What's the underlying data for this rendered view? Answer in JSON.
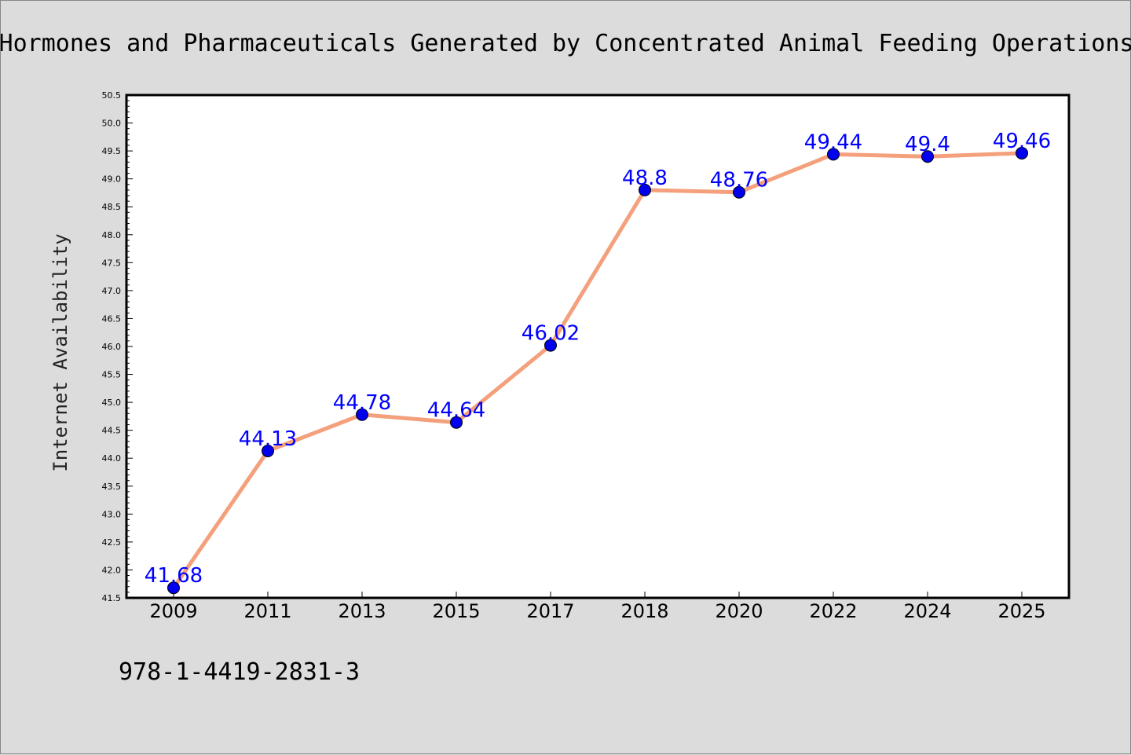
{
  "chart_data": {
    "type": "line",
    "title": "Hormones and Pharmaceuticals Generated by Concentrated Animal Feeding Operations",
    "xlabel": "",
    "ylabel": "Internet Availability",
    "categories": [
      "2009",
      "2011",
      "2013",
      "2015",
      "2017",
      "2018",
      "2020",
      "2022",
      "2024",
      "2025"
    ],
    "series": [
      {
        "values": [
          41.68,
          44.13,
          44.78,
          44.64,
          46.02,
          48.8,
          48.76,
          49.44,
          49.4,
          49.46
        ],
        "labels": [
          "41.68",
          "44.13",
          "44.78",
          "44.64",
          "46.02",
          "48.8",
          "48.76",
          "49.44",
          "49.4",
          "49.46"
        ],
        "line_color": "#f4a07c",
        "marker_color": "#0000ee",
        "label_color": "#0000ff"
      }
    ],
    "ylim": [
      41.5,
      50.5
    ],
    "yticks": [
      "41.5",
      "42.0",
      "42.5",
      "43.0",
      "43.5",
      "44.0",
      "44.5",
      "45.0",
      "45.5",
      "46.0",
      "46.5",
      "47.0",
      "47.5",
      "48.0",
      "48.5",
      "49.0",
      "49.5",
      "50.0",
      "50.5"
    ],
    "grid": false,
    "legend": "none"
  },
  "footer": {
    "isbn": "978-1-4419-2831-3"
  },
  "colors": {
    "background": "#dcdcdc",
    "plot_background": "#ffffff"
  }
}
